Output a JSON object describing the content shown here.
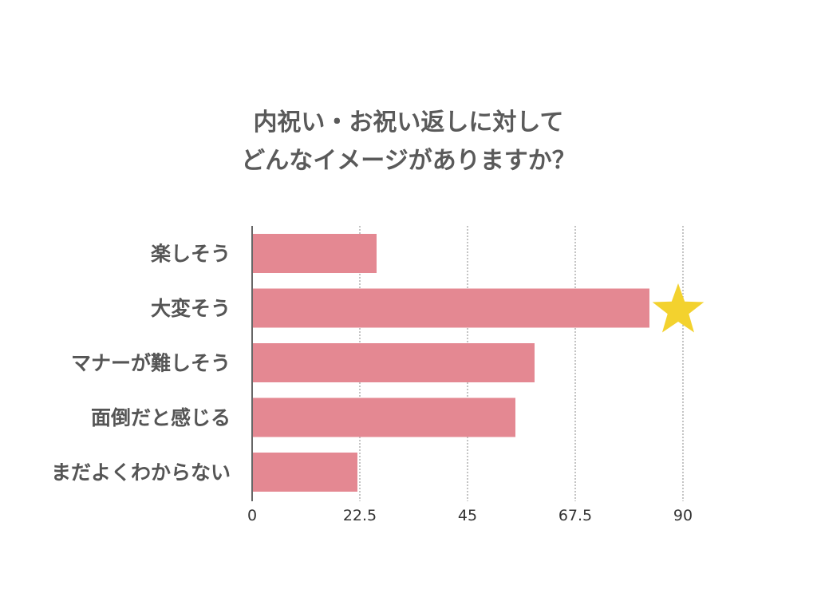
{
  "colors": {
    "bar": "#e48892",
    "star": "#f3d22e",
    "title": "#5a5a5a",
    "label": "#555555",
    "grid": "#888888",
    "axis": "#333333"
  },
  "chart_data": {
    "type": "bar",
    "orientation": "horizontal",
    "title_lines": [
      "内祝い・お祝い返しに対して",
      "どんなイメージがありますか？"
    ],
    "categories": [
      "楽しそう",
      "大変そう",
      "マナーが難しそう",
      "面倒だと感じる",
      "まだよくわからない"
    ],
    "values": [
      26,
      83,
      59,
      55,
      22
    ],
    "xlim": [
      0,
      90
    ],
    "ticks": [
      "0",
      "22.5",
      "45",
      "67.5",
      "90"
    ],
    "grid": "vertical-dotted",
    "highlight": {
      "category": "大変そう",
      "marker": "star-icon"
    }
  }
}
